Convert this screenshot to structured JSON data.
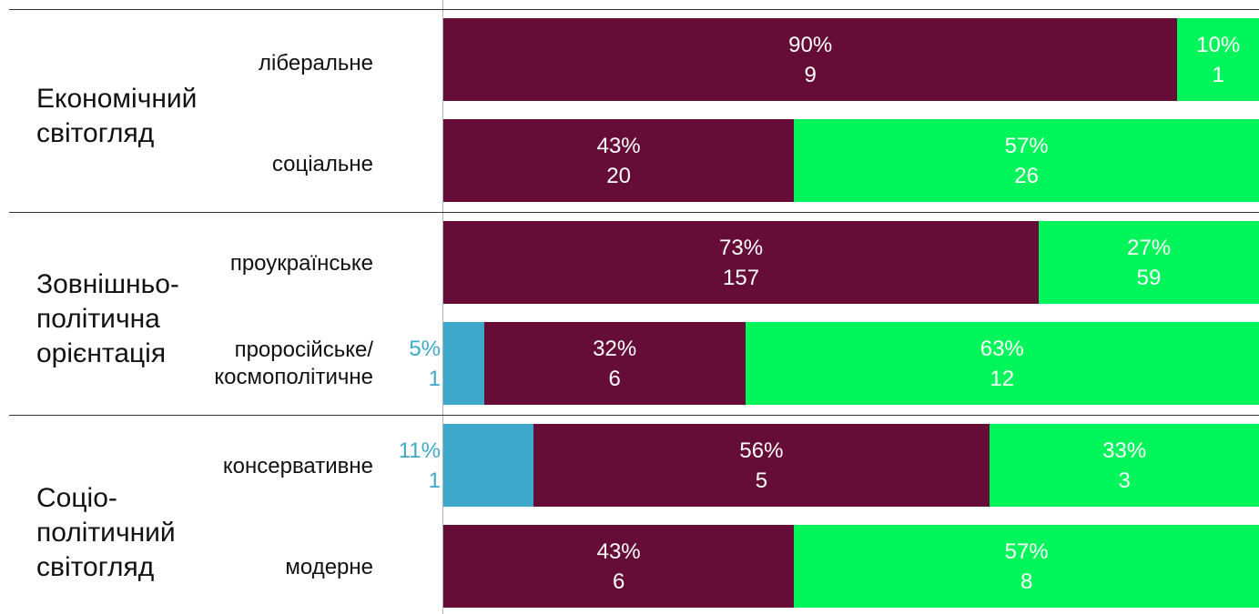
{
  "colors": {
    "maroon": "#650d37",
    "green": "#00f55b",
    "blue": "#3ea8cb",
    "label_on_maroon": "#ffffff",
    "label_on_green": "#ffffff",
    "label_outside": "#3ea8cb"
  },
  "chart_data": {
    "type": "bar",
    "orientation": "horizontal",
    "stacked": true,
    "normalized": true,
    "xlim": [
      0,
      100
    ],
    "groups": [
      {
        "label": "Економічний\nсвітогляд",
        "rows": [
          {
            "label": "ліберальне",
            "segments": [
              {
                "color_key": "blue",
                "percent": 0,
                "count": 0,
                "percent_label": "",
                "count_label": ""
              },
              {
                "color_key": "maroon",
                "percent": 90,
                "count": 9,
                "percent_label": "90%",
                "count_label": "9"
              },
              {
                "color_key": "green",
                "percent": 10,
                "count": 1,
                "percent_label": "10%",
                "count_label": "1"
              }
            ]
          },
          {
            "label": "соціальне",
            "segments": [
              {
                "color_key": "blue",
                "percent": 0,
                "count": 0,
                "percent_label": "",
                "count_label": ""
              },
              {
                "color_key": "maroon",
                "percent": 43,
                "count": 20,
                "percent_label": "43%",
                "count_label": "20"
              },
              {
                "color_key": "green",
                "percent": 57,
                "count": 26,
                "percent_label": "57%",
                "count_label": "26"
              }
            ]
          }
        ]
      },
      {
        "label": "Зовнішньо-\nполітична\nорієнтація",
        "rows": [
          {
            "label": "проукраїнське",
            "segments": [
              {
                "color_key": "blue",
                "percent": 0,
                "count": 0,
                "percent_label": "",
                "count_label": ""
              },
              {
                "color_key": "maroon",
                "percent": 73,
                "count": 157,
                "percent_label": "73%",
                "count_label": "157"
              },
              {
                "color_key": "green",
                "percent": 27,
                "count": 59,
                "percent_label": "27%",
                "count_label": "59"
              }
            ]
          },
          {
            "label": "проросійське/\nкосмополітичне",
            "segments": [
              {
                "color_key": "blue",
                "percent": 5,
                "count": 1,
                "percent_label": "5%",
                "count_label": "1"
              },
              {
                "color_key": "maroon",
                "percent": 32,
                "count": 6,
                "percent_label": "32%",
                "count_label": "6"
              },
              {
                "color_key": "green",
                "percent": 63,
                "count": 12,
                "percent_label": "63%",
                "count_label": "12"
              }
            ]
          }
        ]
      },
      {
        "label": "Соціо-\nполітичний\nсвітогляд",
        "rows": [
          {
            "label": "консервативне",
            "segments": [
              {
                "color_key": "blue",
                "percent": 11,
                "count": 1,
                "percent_label": "11%",
                "count_label": "1"
              },
              {
                "color_key": "maroon",
                "percent": 56,
                "count": 5,
                "percent_label": "56%",
                "count_label": "5"
              },
              {
                "color_key": "green",
                "percent": 33,
                "count": 3,
                "percent_label": "33%",
                "count_label": "3"
              }
            ]
          },
          {
            "label": "модерне",
            "segments": [
              {
                "color_key": "blue",
                "percent": 0,
                "count": 0,
                "percent_label": "",
                "count_label": ""
              },
              {
                "color_key": "maroon",
                "percent": 43,
                "count": 6,
                "percent_label": "43%",
                "count_label": "6"
              },
              {
                "color_key": "green",
                "percent": 57,
                "count": 8,
                "percent_label": "57%",
                "count_label": "8"
              }
            ]
          }
        ]
      }
    ]
  }
}
